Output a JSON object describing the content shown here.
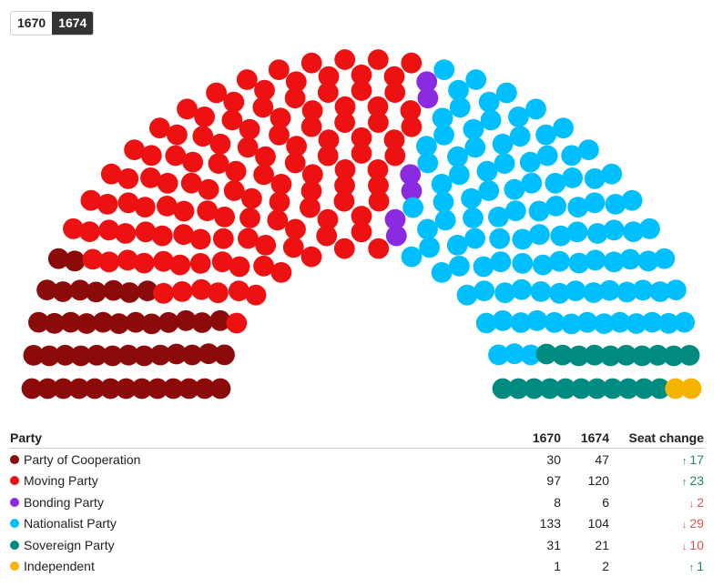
{
  "toggle": {
    "options": [
      {
        "label": "1670",
        "active": false
      },
      {
        "label": "1674",
        "active": true
      }
    ]
  },
  "chart_data": {
    "type": "hemicycle",
    "selected_year": "1674",
    "total_seats": 300,
    "series": [
      {
        "name": "Party of Cooperation",
        "color": "#8b0a0a",
        "seats_1670": 30,
        "seats_1674": 47
      },
      {
        "name": "Moving Party",
        "color": "#ee1111",
        "seats_1670": 97,
        "seats_1674": 120
      },
      {
        "name": "Bonding Party",
        "color": "#8a2be2",
        "seats_1670": 8,
        "seats_1674": 6
      },
      {
        "name": "Nationalist Party",
        "color": "#00bfff",
        "seats_1670": 133,
        "seats_1674": 104
      },
      {
        "name": "Sovereign Party",
        "color": "#008b80",
        "seats_1670": 31,
        "seats_1674": 21
      },
      {
        "name": "Independent",
        "color": "#f4b400",
        "seats_1670": 1,
        "seats_1674": 2
      }
    ]
  },
  "table": {
    "headers": {
      "party": "Party",
      "y1": "1670",
      "y2": "1674",
      "change": "Seat change"
    },
    "rows": [
      {
        "party": "Party of Cooperation",
        "color": "#8b0a0a",
        "y1": "30",
        "y2": "47",
        "change": "17",
        "direction": "up"
      },
      {
        "party": "Moving Party",
        "color": "#ee1111",
        "y1": "97",
        "y2": "120",
        "change": "23",
        "direction": "up"
      },
      {
        "party": "Bonding Party",
        "color": "#8a2be2",
        "y1": "8",
        "y2": "6",
        "change": "2",
        "direction": "down"
      },
      {
        "party": "Nationalist Party",
        "color": "#00bfff",
        "y1": "133",
        "y2": "104",
        "change": "29",
        "direction": "down"
      },
      {
        "party": "Sovereign Party",
        "color": "#008b80",
        "y1": "31",
        "y2": "21",
        "change": "10",
        "direction": "down"
      },
      {
        "party": "Independent",
        "color": "#f4b400",
        "y1": "1",
        "y2": "2",
        "change": "1",
        "direction": "up"
      }
    ]
  }
}
